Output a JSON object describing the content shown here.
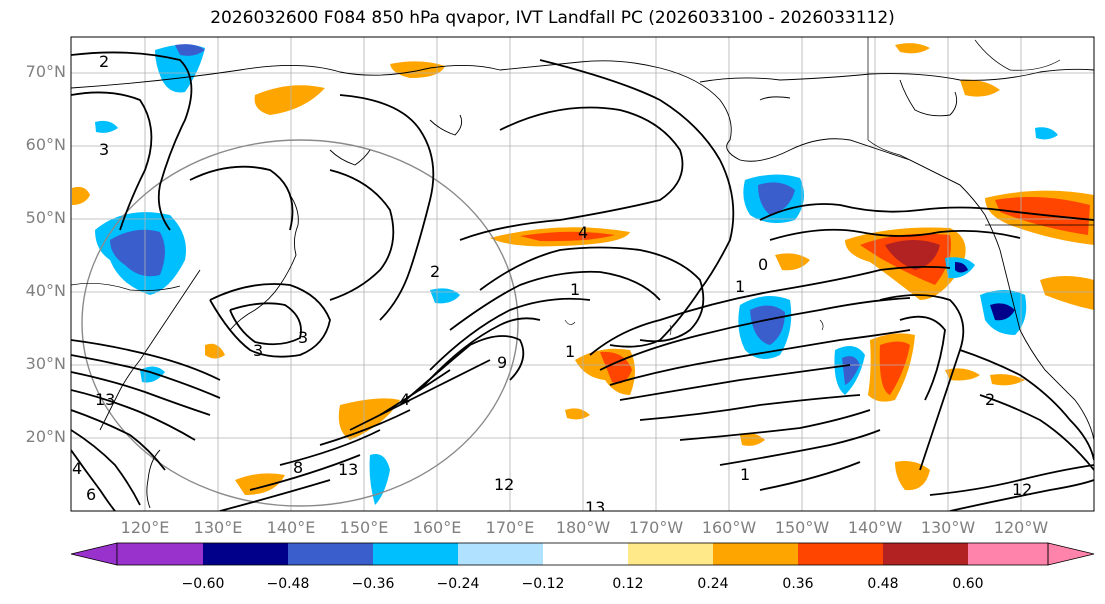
{
  "title": "2026032600 F084 850 hPa qvapor, IVT Landfall PC (2026033100 - 2026033112)",
  "lat_labels": [
    "70°N",
    "60°N",
    "50°N",
    "40°N",
    "30°N",
    "20°N"
  ],
  "lon_labels": [
    "120°E",
    "130°E",
    "140°E",
    "150°E",
    "160°E",
    "170°E",
    "180°W",
    "170°W",
    "160°W",
    "150°W",
    "140°W",
    "130°W",
    "120°W"
  ],
  "contour_labels": [
    "2",
    "3",
    "2",
    "1",
    "4",
    "1",
    "1",
    "0",
    "3",
    "4",
    "3",
    "8",
    "13",
    "12",
    "9",
    "13",
    "12",
    "1",
    "2",
    "13",
    "4",
    "6"
  ],
  "colorbar": {
    "tick_labels": [
      "−0.60",
      "−0.48",
      "−0.36",
      "−0.24",
      "−0.12",
      "0.12",
      "0.24",
      "0.36",
      "0.48",
      "0.60"
    ],
    "colors": [
      "#9932cc",
      "#00008b",
      "#3a5fcd",
      "#00bfff",
      "#b0e2ff",
      "#ffffff",
      "#ffe989",
      "#ffa500",
      "#ff4500",
      "#b22222",
      "#ff83aa"
    ]
  }
}
